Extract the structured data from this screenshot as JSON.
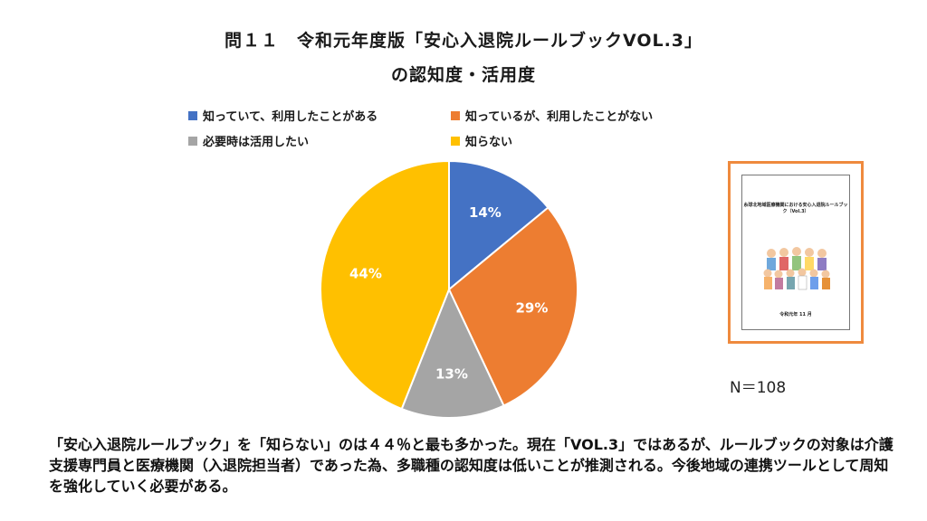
{
  "header": {
    "title_line1": "問１１　令和元年度版「安心入退院ルールブックVOL.3」",
    "title_line2": "の認知度・活用度"
  },
  "chart_data": {
    "type": "pie",
    "title": "問１１　令和元年度版「安心入退院ルールブックVOL.3」の認知度・活用度",
    "categories": [
      "知っていて、利用したことがある",
      "知っているが、利用したことがない",
      "必要時は活用したい",
      "知らない"
    ],
    "values": [
      14,
      29,
      13,
      44
    ],
    "labels": [
      "14%",
      "29%",
      "13%",
      "44%"
    ],
    "colors": [
      "#4472c4",
      "#ed7d31",
      "#a5a5a5",
      "#ffc000"
    ],
    "legend_position": "top"
  },
  "thumbnail": {
    "title": "糸球北地域医療機関における安心入退院ルールブック（Vol.3）",
    "footer": "令和元年 11 月"
  },
  "n_label": "N＝108",
  "note": "「安心入退院ルールブック」を「知らない」のは４４％と最も多かった。現在「VOL.3」ではあるが、ルールブックの対象は介護支援専門員と医療機関（入退院担当者）であった為、多職種の認知度は低いことが推測される。今後地域の連携ツールとして周知を強化していく必要がある。"
}
